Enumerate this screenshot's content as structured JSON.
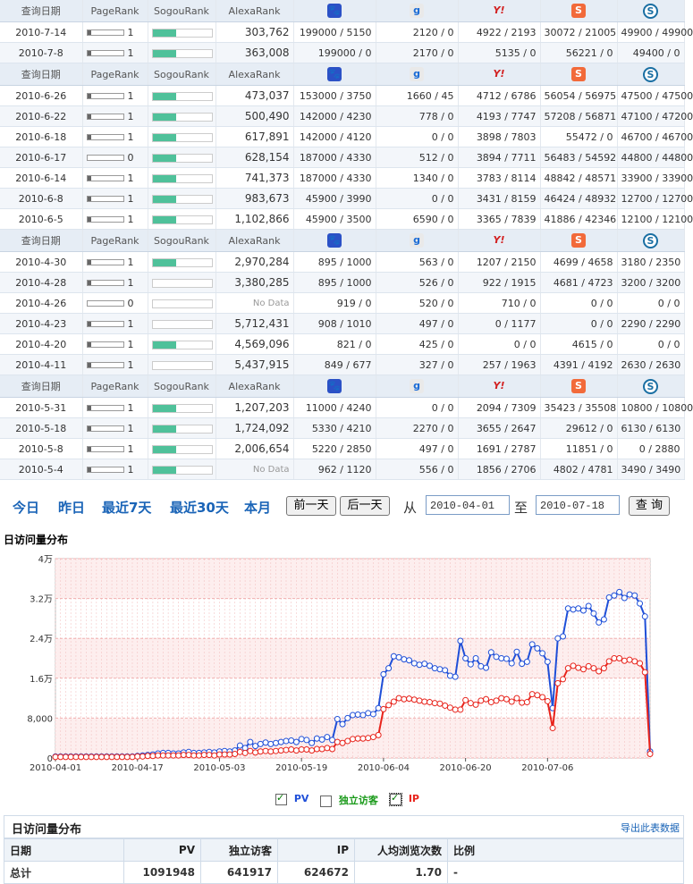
{
  "headers": {
    "date": "查询日期",
    "pagerank": "PageRank",
    "sogourank": "SogouRank",
    "alexarank": "AlexaRank",
    "engines": [
      {
        "icon": "baidu-icon",
        "glyph": "🐾"
      },
      {
        "icon": "google-icon",
        "glyph": "g"
      },
      {
        "icon": "yahoo-icon",
        "glyph": "Y!"
      },
      {
        "icon": "sogou-icon",
        "glyph": "S"
      },
      {
        "icon": "soso-icon",
        "glyph": "S"
      }
    ]
  },
  "groups": [
    {
      "rows": [
        {
          "date": "2010-7-14",
          "pr": "1",
          "prFill": 0.1,
          "sg": 0.4,
          "alexa": "303,762",
          "e1": "199000 / 5150",
          "e2": "2120 / 0",
          "e3": "4922 / 2193",
          "e4": "30072 / 21005",
          "e5": "49900 / 49900"
        },
        {
          "date": "2010-7-8",
          "pr": "1",
          "prFill": 0.1,
          "sg": 0.4,
          "alexa": "363,008",
          "e1": "199000 / 0",
          "e2": "2170 / 0",
          "e3": "5135 / 0",
          "e4": "56221 / 0",
          "e5": "49400 / 0"
        }
      ]
    },
    {
      "rows": [
        {
          "date": "2010-6-26",
          "pr": "1",
          "prFill": 0.1,
          "sg": 0.4,
          "alexa": "473,037",
          "e1": "153000 / 3750",
          "e2": "1660 / 45",
          "e3": "4712 / 6786",
          "e4": "56054 / 56975",
          "e5": "47500 / 47500"
        },
        {
          "date": "2010-6-22",
          "pr": "1",
          "prFill": 0.1,
          "sg": 0.4,
          "alexa": "500,490",
          "e1": "142000 / 4230",
          "e2": "778 / 0",
          "e3": "4193 / 7747",
          "e4": "57208 / 56871",
          "e5": "47100 / 47200"
        },
        {
          "date": "2010-6-18",
          "pr": "1",
          "prFill": 0.1,
          "sg": 0.4,
          "alexa": "617,891",
          "e1": "142000 / 4120",
          "e2": "0 / 0",
          "e3": "3898 / 7803",
          "e4": "55472 / 0",
          "e5": "46700 / 46700"
        },
        {
          "date": "2010-6-17",
          "pr": "0",
          "prFill": 0.0,
          "sg": 0.4,
          "alexa": "628,154",
          "e1": "187000 / 4330",
          "e2": "512 / 0",
          "e3": "3894 / 7711",
          "e4": "56483 / 54592",
          "e5": "44800 / 44800"
        },
        {
          "date": "2010-6-14",
          "pr": "1",
          "prFill": 0.1,
          "sg": 0.4,
          "alexa": "741,373",
          "e1": "187000 / 4330",
          "e2": "1340 / 0",
          "e3": "3783 / 8114",
          "e4": "48842 / 48571",
          "e5": "33900 / 33900"
        },
        {
          "date": "2010-6-8",
          "pr": "1",
          "prFill": 0.1,
          "sg": 0.4,
          "alexa": "983,673",
          "e1": "45900 / 3990",
          "e2": "0 / 0",
          "e3": "3431 / 8159",
          "e4": "46424 / 48932",
          "e5": "12700 / 12700"
        },
        {
          "date": "2010-6-5",
          "pr": "1",
          "prFill": 0.1,
          "sg": 0.4,
          "alexa": "1,102,866",
          "e1": "45900 / 3500",
          "e2": "6590 / 0",
          "e3": "3365 / 7839",
          "e4": "41886 / 42346",
          "e5": "12100 / 12100"
        }
      ]
    },
    {
      "rows": [
        {
          "date": "2010-4-30",
          "pr": "1",
          "prFill": 0.1,
          "sg": 0.4,
          "alexa": "2,970,284",
          "e1": "895 / 1000",
          "e2": "563 / 0",
          "e3": "1207 / 2150",
          "e4": "4699 / 4658",
          "e5": "3180 / 2350"
        },
        {
          "date": "2010-4-28",
          "pr": "1",
          "prFill": 0.1,
          "sg": 0.0,
          "alexa": "3,380,285",
          "e1": "895 / 1000",
          "e2": "526 / 0",
          "e3": "922 / 1915",
          "e4": "4681 / 4723",
          "e5": "3200 / 3200"
        },
        {
          "date": "2010-4-26",
          "pr": "0",
          "prFill": 0.0,
          "sg": 0.0,
          "alexa": "No Data",
          "e1": "919 / 0",
          "e2": "520 / 0",
          "e3": "710 / 0",
          "e4": "0 / 0",
          "e5": "0 / 0"
        },
        {
          "date": "2010-4-23",
          "pr": "1",
          "prFill": 0.1,
          "sg": 0.0,
          "alexa": "5,712,431",
          "e1": "908 / 1010",
          "e2": "497 / 0",
          "e3": "0 / 1177",
          "e4": "0 / 0",
          "e5": "2290 / 2290"
        },
        {
          "date": "2010-4-20",
          "pr": "1",
          "prFill": 0.1,
          "sg": 0.4,
          "alexa": "4,569,096",
          "e1": "821 / 0",
          "e2": "425 / 0",
          "e3": "0 / 0",
          "e4": "4615 / 0",
          "e5": "0 / 0"
        },
        {
          "date": "2010-4-11",
          "pr": "1",
          "prFill": 0.1,
          "sg": 0.0,
          "alexa": "5,437,915",
          "e1": "849 / 677",
          "e2": "327 / 0",
          "e3": "257 / 1963",
          "e4": "4391 / 4192",
          "e5": "2630 / 2630"
        }
      ]
    },
    {
      "rows": [
        {
          "date": "2010-5-31",
          "pr": "1",
          "prFill": 0.1,
          "sg": 0.4,
          "alexa": "1,207,203",
          "e1": "11000 / 4240",
          "e2": "0 / 0",
          "e3": "2094 / 7309",
          "e4": "35423 / 35508",
          "e5": "10800 / 10800"
        },
        {
          "date": "2010-5-18",
          "pr": "1",
          "prFill": 0.1,
          "sg": 0.4,
          "alexa": "1,724,092",
          "e1": "5330 / 4210",
          "e2": "2270 / 0",
          "e3": "3655 / 2647",
          "e4": "29612 / 0",
          "e5": "6130 / 6130"
        },
        {
          "date": "2010-5-8",
          "pr": "1",
          "prFill": 0.1,
          "sg": 0.4,
          "alexa": "2,006,654",
          "e1": "5220 / 2850",
          "e2": "497 / 0",
          "e3": "1691 / 2787",
          "e4": "11851 / 0",
          "e5": "0 / 2880"
        },
        {
          "date": "2010-5-4",
          "pr": "1",
          "prFill": 0.1,
          "sg": 0.4,
          "alexa": "No Data",
          "e1": "962 / 1120",
          "e2": "556 / 0",
          "e3": "1856 / 2706",
          "e4": "4802 / 4781",
          "e5": "3490 / 3490"
        }
      ]
    }
  ],
  "toolbar": {
    "today": "今日",
    "yesterday": "昨日",
    "last7": "最近7天",
    "last30": "最近30天",
    "month": "本月",
    "prev": "前一天",
    "next": "后一天",
    "from": "从",
    "fromDate": "2010-04-01",
    "to": "至",
    "toDate": "2010-07-18",
    "query": "查 询"
  },
  "chartTitle": "日访问量分布",
  "chart_data": {
    "type": "line",
    "yticks": [
      "0",
      "8,000",
      "1.6万",
      "2.4万",
      "3.2万",
      "4万"
    ],
    "ylim": [
      0,
      40000
    ],
    "xticks": [
      "2010-04-01",
      "2010-04-17",
      "2010-05-03",
      "2010-05-19",
      "2010-06-04",
      "2010-06-20",
      "2010-07-06"
    ],
    "series": [
      {
        "name": "PV",
        "color": "#1f4fd8",
        "values": [
          300,
          300,
          300,
          300,
          300,
          300,
          300,
          300,
          300,
          300,
          300,
          300,
          300,
          300,
          300,
          300,
          400,
          500,
          600,
          700,
          900,
          1000,
          1000,
          900,
          900,
          1100,
          1200,
          1000,
          1000,
          1100,
          1200,
          1100,
          1300,
          1400,
          1300,
          1500,
          2500,
          2000,
          3200,
          2400,
          2800,
          3100,
          2800,
          3000,
          3200,
          3400,
          3500,
          3200,
          3800,
          3600,
          3000,
          3900,
          3700,
          4200,
          3600,
          7800,
          6800,
          8000,
          8600,
          8700,
          8600,
          9000,
          8800,
          10000,
          16800,
          18000,
          20400,
          20200,
          19800,
          19600,
          19000,
          18700,
          18900,
          18500,
          18000,
          17800,
          17600,
          16500,
          16300,
          23500,
          20000,
          18800,
          20000,
          18400,
          18100,
          21200,
          20300,
          20000,
          19900,
          19000,
          21300,
          18900,
          19300,
          22800,
          22000,
          21000,
          19300,
          10000,
          24000,
          24400,
          30000,
          29800,
          30000,
          29600,
          30500,
          29000,
          27200,
          27800,
          32200,
          32600,
          33300,
          32100,
          32800,
          32600,
          31000,
          28400,
          1300
        ]
      },
      {
        "name": "IP",
        "color": "#e8231b",
        "values": [
          200,
          200,
          200,
          200,
          200,
          200,
          200,
          200,
          200,
          200,
          200,
          200,
          200,
          200,
          200,
          200,
          300,
          300,
          400,
          400,
          500,
          500,
          500,
          500,
          500,
          600,
          600,
          500,
          500,
          600,
          600,
          500,
          700,
          700,
          700,
          800,
          1200,
          1000,
          1400,
          1100,
          1300,
          1400,
          1300,
          1400,
          1500,
          1600,
          1700,
          1500,
          1700,
          1700,
          1500,
          1800,
          1800,
          2000,
          1800,
          3200,
          3000,
          3400,
          3800,
          3900,
          3900,
          4000,
          4200,
          4600,
          9800,
          10600,
          11300,
          12000,
          11800,
          11900,
          11700,
          11500,
          11300,
          11200,
          11000,
          10900,
          10500,
          10100,
          9700,
          9700,
          11600,
          11000,
          10700,
          11500,
          11800,
          11200,
          11500,
          12000,
          11800,
          11300,
          12000,
          11100,
          11200,
          12800,
          12600,
          12200,
          11400,
          6000,
          15000,
          15800,
          18000,
          18500,
          18100,
          17800,
          18400,
          18000,
          17400,
          18000,
          19400,
          20000,
          20000,
          19500,
          19700,
          19400,
          19000,
          17200,
          800
        ]
      }
    ]
  },
  "legend": {
    "pv": "PV",
    "uv": "独立访客",
    "ip": "IP"
  },
  "stats": {
    "title": "日访问量分布",
    "export": "导出此表数据",
    "cols": [
      "日期",
      "PV",
      "独立访客",
      "IP",
      "人均浏览次数",
      "比例"
    ],
    "total": [
      "总计",
      "1091948",
      "641917",
      "624672",
      "1.70",
      "-"
    ]
  }
}
